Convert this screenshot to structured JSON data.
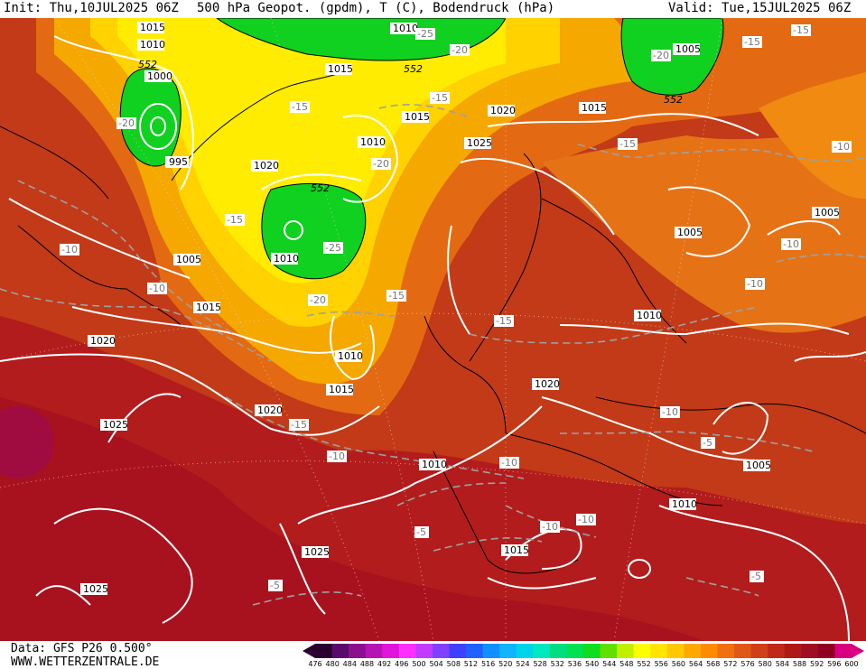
{
  "header": {
    "init": "Init: Thu,10JUL2025 06Z",
    "title": "500 hPa Geopot. (gpdm), T (C), Bodendruck (hPa)",
    "valid": "Valid: Tue,15JUL2025 06Z"
  },
  "footer": {
    "data_source": "Data: GFS P26 0.500°",
    "website": "WWW.WETTERZENTRALE.DE"
  },
  "colorscale": {
    "ticks": [
      "476",
      "480",
      "484",
      "488",
      "492",
      "496",
      "500",
      "504",
      "508",
      "512",
      "516",
      "520",
      "524",
      "528",
      "532",
      "536",
      "540",
      "544",
      "548",
      "552",
      "556",
      "560",
      "564",
      "568",
      "572",
      "576",
      "580",
      "584",
      "588",
      "592",
      "596",
      "600"
    ],
    "colors": [
      "#2b0030",
      "#5a0a6a",
      "#8a1090",
      "#b414b4",
      "#e014dc",
      "#ff30ff",
      "#c03cff",
      "#8040ff",
      "#4040ff",
      "#2060ff",
      "#1090ff",
      "#10b4ff",
      "#00d4e8",
      "#00e8c0",
      "#00dc80",
      "#00e050",
      "#10dc20",
      "#60e000",
      "#c0f000",
      "#ffff00",
      "#ffe400",
      "#ffc800",
      "#ffa800",
      "#ff8c00",
      "#f07010",
      "#e05818",
      "#d04018",
      "#c02818",
      "#b01818",
      "#a00c20",
      "#900020",
      "#d80080"
    ]
  },
  "isobars": [
    "1015",
    "1010",
    "1000",
    "995",
    "1015",
    "1010",
    "1025",
    "1020",
    "1015",
    "1010",
    "1005",
    "1015",
    "1020",
    "1010",
    "1015",
    "1020",
    "1025",
    "1020",
    "1015",
    "1025",
    "1025",
    "1005",
    "1005",
    "1010",
    "1020",
    "1010",
    "1005",
    "1010",
    "1015",
    "1010",
    "1005",
    "1010"
  ],
  "temperatures": [
    "-20",
    "-25",
    "-20",
    "-15",
    "-15",
    "-20",
    "-15",
    "-10",
    "-15",
    "-20",
    "-25",
    "-20",
    "-15",
    "-10",
    "-15",
    "-10",
    "-15",
    "-15",
    "-15",
    "-10",
    "-10",
    "-10",
    "-5",
    "-10",
    "-5",
    "-10",
    "-10",
    "-5",
    "-5",
    "-10",
    "-15",
    "-15",
    "-20"
  ],
  "geopot_labels": [
    "552",
    "552",
    "552",
    "552"
  ]
}
